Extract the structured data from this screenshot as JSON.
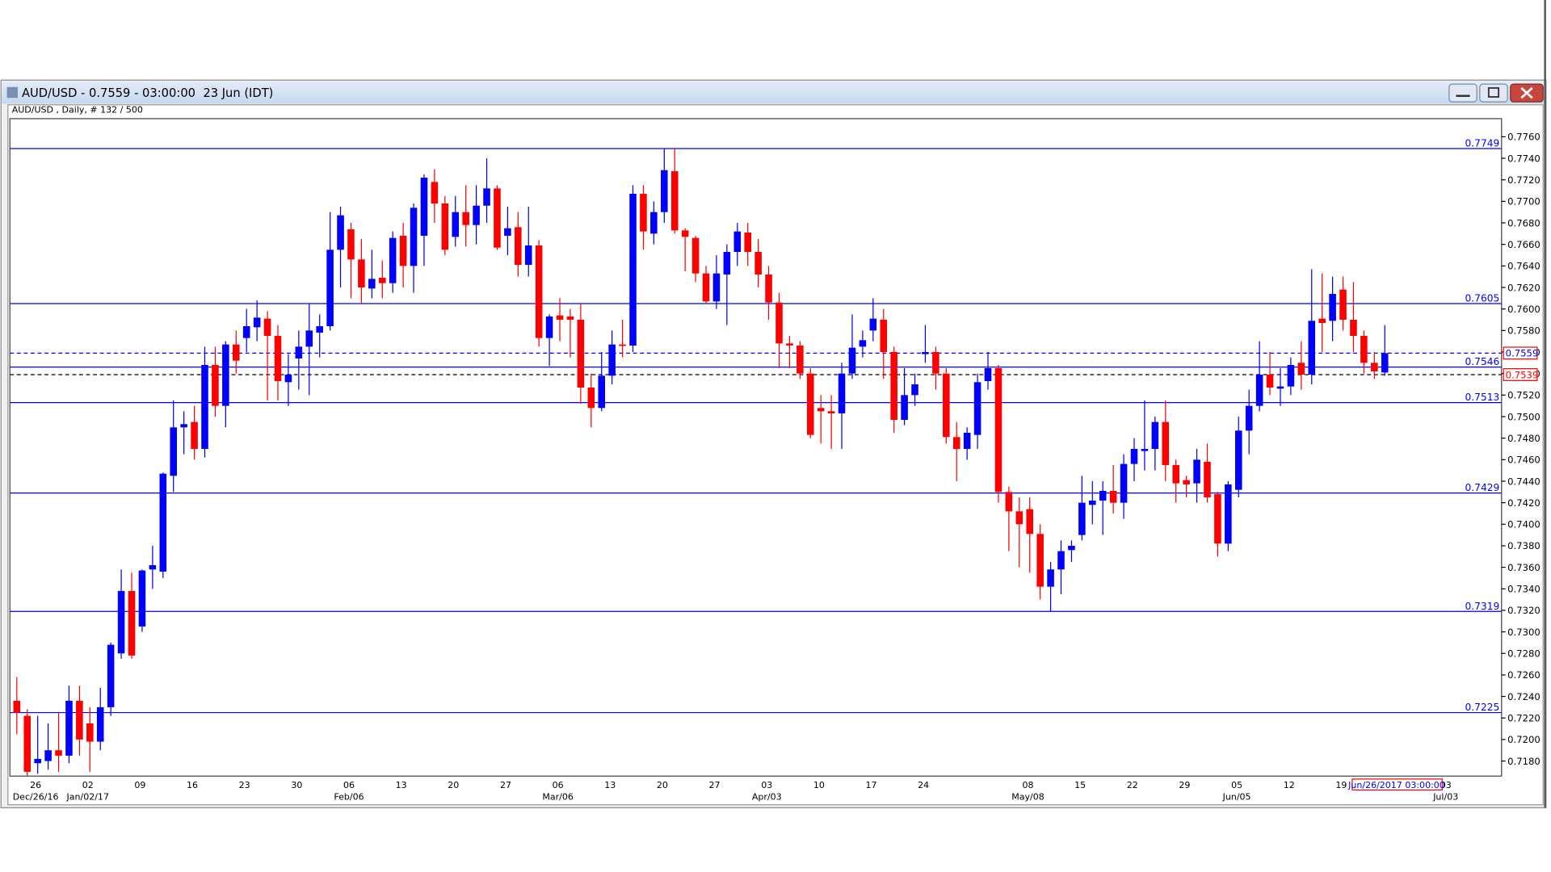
{
  "chart_data": {
    "type": "candlestick",
    "title": "AUD/USD - 0.7559 - 03:00:00  23 Jun (IDT)",
    "subtitle": "AUD/USD , Daily, # 132 / 500",
    "cursor_label": "Jun/26/2017 03:00:00",
    "up_color": "#0000ff",
    "down_color": "#ff0000",
    "level_color": "#0000ff",
    "ylim": [
      0.7166,
      0.7775
    ],
    "yticks": [
      {
        "value": 0.718,
        "label": "0.7180"
      },
      {
        "value": 0.72,
        "label": "0.7200"
      },
      {
        "value": 0.722,
        "label": "0.7220"
      },
      {
        "value": 0.724,
        "label": "0.7240"
      },
      {
        "value": 0.726,
        "label": "0.7260"
      },
      {
        "value": 0.728,
        "label": "0.7280"
      },
      {
        "value": 0.73,
        "label": "0.7300"
      },
      {
        "value": 0.732,
        "label": "0.7320"
      },
      {
        "value": 0.734,
        "label": "0.7340"
      },
      {
        "value": 0.736,
        "label": "0.7360"
      },
      {
        "value": 0.738,
        "label": "0.7380"
      },
      {
        "value": 0.74,
        "label": "0.7400"
      },
      {
        "value": 0.742,
        "label": "0.7420"
      },
      {
        "value": 0.744,
        "label": "0.7440"
      },
      {
        "value": 0.746,
        "label": "0.7460"
      },
      {
        "value": 0.748,
        "label": "0.7480"
      },
      {
        "value": 0.75,
        "label": "0.7500"
      },
      {
        "value": 0.752,
        "label": "0.7520"
      },
      {
        "value": 0.754,
        "label": "0.7540"
      },
      {
        "value": 0.756,
        "label": "0.7560"
      },
      {
        "value": 0.758,
        "label": "0.7580"
      },
      {
        "value": 0.76,
        "label": "0.7600"
      },
      {
        "value": 0.762,
        "label": "0.7620"
      },
      {
        "value": 0.764,
        "label": "0.7640"
      },
      {
        "value": 0.766,
        "label": "0.7660"
      },
      {
        "value": 0.768,
        "label": "0.7680"
      },
      {
        "value": 0.77,
        "label": "0.7700"
      },
      {
        "value": 0.772,
        "label": "0.7720"
      },
      {
        "value": 0.774,
        "label": "0.7740"
      },
      {
        "value": 0.776,
        "label": "0.7760"
      }
    ],
    "levels": [
      0.7749,
      0.7605,
      0.7546,
      0.7513,
      0.7429,
      0.7319,
      0.7225
    ],
    "bid_line": 0.7559,
    "close_line": 0.7539,
    "categories": [
      "26",
      "02",
      "09",
      "16",
      "23",
      "30",
      "06",
      "13",
      "20",
      "27",
      "06",
      "13",
      "20",
      "27",
      "03",
      "10",
      "17",
      "24",
      null,
      "08",
      "15",
      "22",
      "29",
      "05",
      "12",
      "19",
      null,
      "03"
    ],
    "period_labels": [
      "Dec/26/16",
      "Jan/02/17",
      null,
      null,
      null,
      null,
      "Feb/06",
      null,
      null,
      null,
      "Mar/06",
      null,
      null,
      null,
      "Apr/03",
      null,
      null,
      null,
      null,
      "May/08",
      null,
      null,
      null,
      "Jun/05",
      null,
      null,
      null,
      "Jul/03"
    ],
    "open": [
      0.7236,
      0.7222,
      0.7178,
      0.718,
      0.719,
      0.7185,
      0.7236,
      0.7215,
      0.7198,
      0.723,
      0.728,
      0.7338,
      0.7305,
      0.7358,
      0.7356,
      0.7445,
      0.749,
      0.7495,
      0.747,
      0.7548,
      0.751,
      0.7567,
      0.7573,
      0.7583,
      0.7591,
      0.7575,
      0.7532,
      0.7554,
      0.7565,
      0.7578,
      0.7584,
      0.7655,
      0.7674,
      0.7646,
      0.7619,
      0.7629,
      0.7624,
      0.7668,
      0.764,
      0.7668,
      0.7718,
      0.7698,
      0.7667,
      0.769,
      0.7678,
      0.7696,
      0.7712,
      0.7668,
      0.7676,
      0.7641,
      0.7659,
      0.7573,
      0.7594,
      0.7593,
      0.759,
      0.7527,
      0.7508,
      0.7538,
      0.7567,
      0.7566,
      0.7707,
      0.767,
      0.769,
      0.7728,
      0.7673,
      0.7666,
      0.7633,
      0.7607,
      0.7632,
      0.7653,
      0.7671,
      0.7653,
      0.7632,
      0.7606,
      0.7568,
      0.7566,
      0.754,
      0.7508,
      0.7505,
      0.7503,
      0.754,
      0.7565,
      0.758,
      0.759,
      0.756,
      0.7497,
      0.752,
      0.7558,
      0.756,
      0.754,
      0.7481,
      0.747,
      0.7483,
      0.7533,
      0.7545,
      0.743,
      0.7412,
      0.7414,
      0.7391,
      0.7342,
      0.7358,
      0.7376,
      0.739,
      0.7418,
      0.7422,
      0.7431,
      0.742,
      0.7456,
      0.7468,
      0.747,
      0.7495,
      0.7455,
      0.7441,
      0.7438,
      0.7458,
      0.7428,
      0.7382,
      0.7432,
      0.7487,
      0.751,
      0.7539,
      0.7526,
      0.7528,
      0.755,
      0.7539,
      0.7591,
      0.7589,
      0.7618,
      0.759,
      0.7575,
      0.755,
      0.7541
    ],
    "high": [
      0.7258,
      0.7228,
      0.7222,
      0.7215,
      0.7225,
      0.725,
      0.725,
      0.723,
      0.7248,
      0.729,
      0.7358,
      0.7355,
      0.7358,
      0.738,
      0.7448,
      0.7515,
      0.7505,
      0.751,
      0.7565,
      0.7565,
      0.757,
      0.758,
      0.76,
      0.7608,
      0.7598,
      0.7585,
      0.7558,
      0.758,
      0.7605,
      0.7595,
      0.769,
      0.7695,
      0.768,
      0.7665,
      0.7655,
      0.7645,
      0.7672,
      0.768,
      0.7698,
      0.7725,
      0.773,
      0.7705,
      0.7705,
      0.7715,
      0.7715,
      0.774,
      0.7715,
      0.7695,
      0.769,
      0.7695,
      0.7664,
      0.7595,
      0.761,
      0.76,
      0.7605,
      0.754,
      0.756,
      0.758,
      0.759,
      0.7715,
      0.7715,
      0.77,
      0.7749,
      0.7749,
      0.7675,
      0.7668,
      0.764,
      0.765,
      0.766,
      0.768,
      0.768,
      0.7665,
      0.764,
      0.7615,
      0.7575,
      0.757,
      0.7545,
      0.752,
      0.752,
      0.755,
      0.7595,
      0.758,
      0.761,
      0.76,
      0.7565,
      0.7545,
      0.754,
      0.7585,
      0.7565,
      0.7545,
      0.7495,
      0.749,
      0.754,
      0.756,
      0.7548,
      0.7435,
      0.7425,
      0.7425,
      0.74,
      0.7365,
      0.7385,
      0.7385,
      0.7445,
      0.744,
      0.744,
      0.7455,
      0.7465,
      0.748,
      0.7515,
      0.75,
      0.7515,
      0.746,
      0.7445,
      0.747,
      0.7475,
      0.743,
      0.744,
      0.75,
      0.7525,
      0.757,
      0.756,
      0.7545,
      0.7555,
      0.757,
      0.7637,
      0.7633,
      0.763,
      0.763,
      0.7625,
      0.758,
      0.756,
      0.7585
    ],
    "low": [
      0.7205,
      0.716,
      0.7168,
      0.7172,
      0.717,
      0.7178,
      0.7185,
      0.717,
      0.719,
      0.7222,
      0.7275,
      0.7275,
      0.73,
      0.734,
      0.735,
      0.743,
      0.7465,
      0.746,
      0.7462,
      0.75,
      0.749,
      0.754,
      0.756,
      0.757,
      0.7515,
      0.7515,
      0.751,
      0.7525,
      0.752,
      0.7555,
      0.758,
      0.762,
      0.761,
      0.7605,
      0.761,
      0.761,
      0.7615,
      0.762,
      0.7615,
      0.764,
      0.768,
      0.765,
      0.7658,
      0.7658,
      0.766,
      0.768,
      0.7655,
      0.765,
      0.763,
      0.763,
      0.7565,
      0.7547,
      0.757,
      0.7555,
      0.7512,
      0.749,
      0.7505,
      0.753,
      0.7555,
      0.756,
      0.7655,
      0.766,
      0.768,
      0.767,
      0.7635,
      0.7625,
      0.7605,
      0.76,
      0.7585,
      0.764,
      0.764,
      0.762,
      0.759,
      0.7545,
      0.7545,
      0.7535,
      0.748,
      0.7475,
      0.747,
      0.747,
      0.7535,
      0.7555,
      0.757,
      0.7535,
      0.7485,
      0.7492,
      0.751,
      0.755,
      0.7525,
      0.7475,
      0.744,
      0.746,
      0.747,
      0.7525,
      0.742,
      0.7375,
      0.736,
      0.7355,
      0.733,
      0.7319,
      0.7335,
      0.7365,
      0.7385,
      0.74,
      0.739,
      0.741,
      0.7405,
      0.744,
      0.745,
      0.745,
      0.744,
      0.742,
      0.7425,
      0.742,
      0.742,
      0.737,
      0.7375,
      0.7425,
      0.7465,
      0.7505,
      0.752,
      0.751,
      0.752,
      0.7525,
      0.753,
      0.756,
      0.757,
      0.758,
      0.756,
      0.754,
      0.7535,
      0.7538
    ],
    "close": [
      0.7225,
      0.717,
      0.7182,
      0.719,
      0.7185,
      0.7236,
      0.72,
      0.7198,
      0.723,
      0.7288,
      0.7338,
      0.7278,
      0.7357,
      0.7362,
      0.7447,
      0.749,
      0.7493,
      0.747,
      0.7548,
      0.751,
      0.7567,
      0.7552,
      0.7584,
      0.7592,
      0.7575,
      0.7533,
      0.7539,
      0.7565,
      0.758,
      0.7584,
      0.7655,
      0.7687,
      0.7646,
      0.762,
      0.7628,
      0.7624,
      0.7666,
      0.764,
      0.7694,
      0.7722,
      0.7698,
      0.7655,
      0.769,
      0.7678,
      0.7696,
      0.7712,
      0.7657,
      0.7675,
      0.7641,
      0.7659,
      0.7573,
      0.7593,
      0.759,
      0.759,
      0.7527,
      0.7508,
      0.7538,
      0.7567,
      0.7566,
      0.7707,
      0.7672,
      0.769,
      0.7729,
      0.7673,
      0.7667,
      0.7633,
      0.7607,
      0.7633,
      0.7653,
      0.7672,
      0.7653,
      0.7632,
      0.7606,
      0.7568,
      0.7566,
      0.754,
      0.7483,
      0.7505,
      0.7503,
      0.754,
      0.7564,
      0.7571,
      0.7591,
      0.756,
      0.7497,
      0.752,
      0.753,
      0.756,
      0.754,
      0.7481,
      0.747,
      0.7485,
      0.7532,
      0.7545,
      0.743,
      0.7412,
      0.74,
      0.7391,
      0.7342,
      0.7358,
      0.7375,
      0.738,
      0.742,
      0.7422,
      0.7431,
      0.742,
      0.7456,
      0.747,
      0.747,
      0.7495,
      0.7455,
      0.7438,
      0.7437,
      0.746,
      0.7425,
      0.7382,
      0.7437,
      0.7487,
      0.751,
      0.7539,
      0.7527,
      0.7528,
      0.7548,
      0.7539,
      0.7589,
      0.7587,
      0.7614,
      0.759,
      0.7575,
      0.755,
      0.7542,
      0.7559
    ]
  }
}
